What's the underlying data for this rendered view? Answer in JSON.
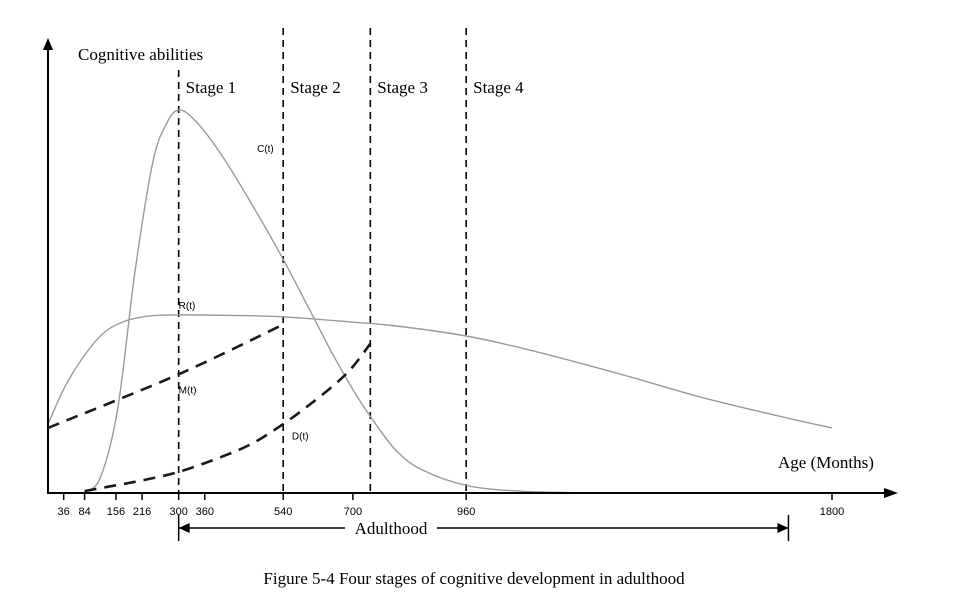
{
  "chart_data": {
    "type": "line",
    "title": "",
    "caption": "Figure 5-4 Four stages of cognitive development in adulthood",
    "ylabel": "Cognitive abilities",
    "xlabel": "Age (Months)",
    "x_ticks": [
      36,
      84,
      156,
      216,
      300,
      360,
      540,
      700,
      960,
      1800
    ],
    "x_tick_labels": [
      "36",
      "84",
      "156",
      "216",
      "300",
      "360",
      "540",
      "700",
      "960",
      "1800"
    ],
    "stage_boundaries": [
      300,
      540,
      740,
      960
    ],
    "stages": [
      {
        "label": "Stage 1",
        "from": 300,
        "to": 540
      },
      {
        "label": "Stage 2",
        "from": 540,
        "to": 740
      },
      {
        "label": "Stage 3",
        "from": 740,
        "to": 960
      },
      {
        "label": "Stage 4",
        "from": 960,
        "to": 1800
      }
    ],
    "adulthood": {
      "label": "Adulthood",
      "from": 300,
      "to": 1700
    },
    "series": [
      {
        "name": "C(t)",
        "style": "solid",
        "points": [
          [
            84,
            0.3
          ],
          [
            120,
            4
          ],
          [
            160,
            22
          ],
          [
            200,
            58
          ],
          [
            240,
            86
          ],
          [
            270,
            96
          ],
          [
            300,
            100
          ],
          [
            340,
            97
          ],
          [
            400,
            88
          ],
          [
            470,
            75
          ],
          [
            540,
            61
          ],
          [
            600,
            48
          ],
          [
            650,
            37
          ],
          [
            700,
            27
          ],
          [
            740,
            20
          ],
          [
            800,
            11
          ],
          [
            860,
            6
          ],
          [
            960,
            2
          ],
          [
            1080,
            0.5
          ],
          [
            1250,
            0
          ]
        ]
      },
      {
        "name": "R(t)",
        "style": "solid",
        "points": [
          [
            0,
            18
          ],
          [
            40,
            28
          ],
          [
            84,
            36
          ],
          [
            130,
            42
          ],
          [
            180,
            45
          ],
          [
            240,
            46.3
          ],
          [
            300,
            46.5
          ],
          [
            400,
            46.4
          ],
          [
            540,
            46
          ],
          [
            700,
            44.6
          ],
          [
            800,
            43.6
          ],
          [
            960,
            41
          ],
          [
            1100,
            37.5
          ],
          [
            1300,
            31.5
          ],
          [
            1500,
            25
          ],
          [
            1700,
            19.5
          ],
          [
            1800,
            17
          ]
        ]
      },
      {
        "name": "M(t)",
        "style": "dashed",
        "points": [
          [
            0,
            17
          ],
          [
            300,
            31
          ],
          [
            540,
            44
          ]
        ]
      },
      {
        "name": "D(t)",
        "style": "dashed",
        "points": [
          [
            84,
            0.5
          ],
          [
            156,
            2
          ],
          [
            216,
            3.3
          ],
          [
            300,
            5.5
          ],
          [
            400,
            9.5
          ],
          [
            470,
            13
          ],
          [
            540,
            18
          ],
          [
            600,
            23
          ],
          [
            660,
            28.5
          ],
          [
            700,
            33
          ],
          [
            740,
            39
          ]
        ]
      }
    ],
    "series_label_at": {
      "C(t)": [
        480,
        89
      ],
      "R(t)": [
        300,
        48
      ],
      "M(t)": [
        300,
        26
      ],
      "D(t)": [
        560,
        14
      ]
    },
    "xlim": [
      0,
      1800
    ],
    "ylim": [
      0,
      105
    ],
    "legend": "none",
    "grid": false
  }
}
